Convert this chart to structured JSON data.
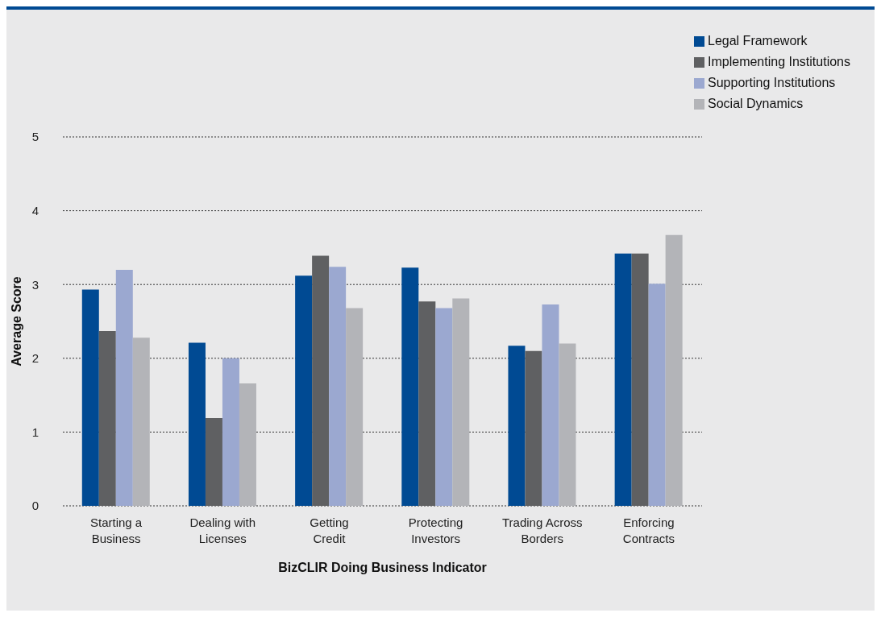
{
  "chart_data": {
    "type": "bar",
    "xlabel": "BizCLIR Doing Business Indicator",
    "ylabel": "Average Score",
    "categories": [
      "Starting a\nBusiness",
      "Dealing with\nLicenses",
      "Getting\nCredit",
      "Protecting\nInvestors",
      "Trading Across\nBorders",
      "Enforcing\nContracts"
    ],
    "series": [
      {
        "name": "Legal Framework",
        "color": "#004a93",
        "values": [
          2.93,
          2.21,
          3.12,
          3.23,
          2.17,
          3.42
        ]
      },
      {
        "name": "Implementing Institutions",
        "color": "#5f6062",
        "values": [
          2.37,
          1.19,
          3.39,
          2.77,
          2.1,
          3.42
        ]
      },
      {
        "name": "Supporting Institutions",
        "color": "#9ba8d0",
        "values": [
          3.2,
          2.0,
          3.24,
          2.68,
          2.73,
          3.01
        ]
      },
      {
        "name": "Social Dynamics",
        "color": "#b3b4b8",
        "values": [
          2.28,
          1.66,
          2.68,
          2.81,
          2.2,
          3.67
        ]
      }
    ],
    "ylim": [
      0,
      5
    ],
    "yticks": [
      0,
      1,
      2,
      3,
      4,
      5
    ],
    "grid": "y",
    "legend": "top right"
  }
}
